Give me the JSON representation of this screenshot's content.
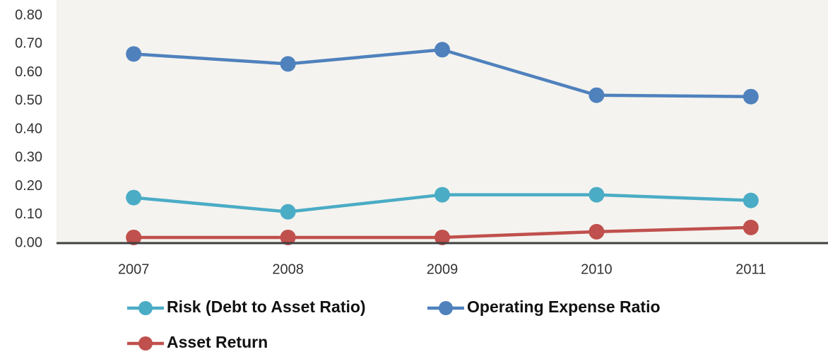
{
  "chart_data": {
    "type": "line",
    "categories": [
      "2007",
      "2008",
      "2009",
      "2010",
      "2011"
    ],
    "series": [
      {
        "name": "Risk (Debt to Asset Ratio)",
        "color": "#4bacc6",
        "values": [
          0.16,
          0.11,
          0.17,
          0.17,
          0.15
        ]
      },
      {
        "name": "Operating Expense Ratio",
        "color": "#4f81bd",
        "values": [
          0.665,
          0.63,
          0.68,
          0.52,
          0.515
        ]
      },
      {
        "name": "Asset Return",
        "color": "#c0504d",
        "values": [
          0.02,
          0.02,
          0.02,
          0.04,
          0.055
        ]
      }
    ],
    "ylim": [
      0,
      0.8
    ],
    "yticks": [
      {
        "value": 0,
        "label": "0.00"
      },
      {
        "value": 0.1,
        "label": "0.10"
      },
      {
        "value": 0.2,
        "label": "0.20"
      },
      {
        "value": 0.3,
        "label": "0.30"
      },
      {
        "value": 0.4,
        "label": "0.40"
      },
      {
        "value": 0.5,
        "label": "0.50"
      },
      {
        "value": 0.6,
        "label": "0.60"
      },
      {
        "value": 0.7,
        "label": "0.70"
      },
      {
        "value": 0.8,
        "label": "0.80"
      }
    ],
    "grid": false,
    "legend": "bottom"
  }
}
